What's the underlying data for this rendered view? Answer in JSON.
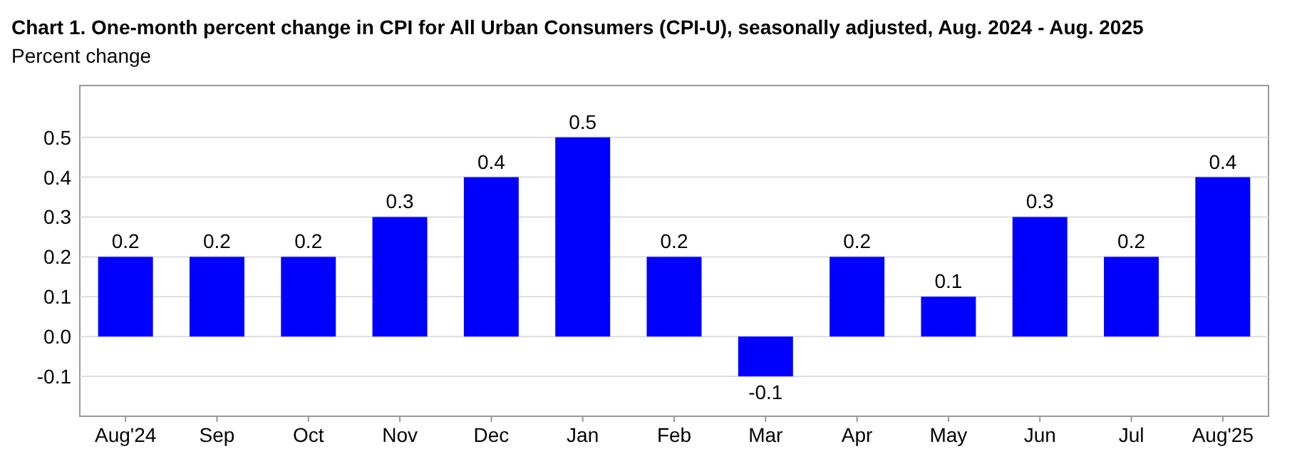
{
  "chart_data": {
    "type": "bar",
    "title": "Chart 1. One-month percent change in CPI for All Urban Consumers (CPI-U), seasonally adjusted, Aug. 2024 - Aug. 2025",
    "subtitle": "Percent change",
    "categories": [
      "Aug'24",
      "Sep",
      "Oct",
      "Nov",
      "Dec",
      "Jan",
      "Feb",
      "Mar",
      "Apr",
      "May",
      "Jun",
      "Jul",
      "Aug'25"
    ],
    "values": [
      0.2,
      0.2,
      0.2,
      0.3,
      0.4,
      0.5,
      0.2,
      -0.1,
      0.2,
      0.1,
      0.3,
      0.2,
      0.4
    ],
    "color": "#0000ff",
    "ylim": [
      -0.2,
      0.63
    ],
    "yticks": [
      -0.1,
      {
        "value": 0,
        "label": "0.0"
      },
      0.1,
      0.2,
      0.3,
      0.4,
      0.5
    ],
    "grid": "y",
    "data_labels": true
  }
}
